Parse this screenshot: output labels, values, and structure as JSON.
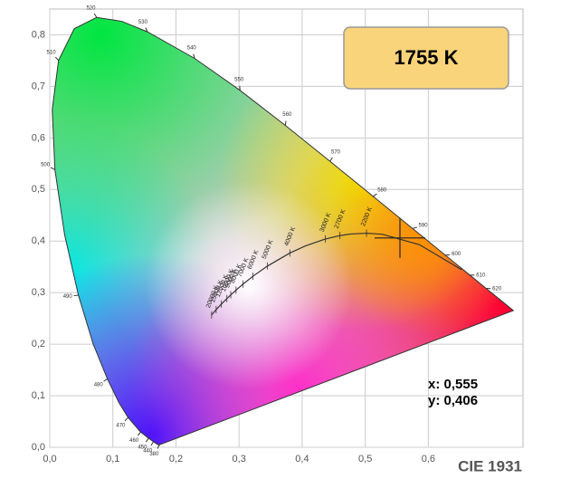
{
  "chart_data": {
    "type": "chromaticity",
    "badge": "1755 K",
    "footer": "CIE 1931",
    "point": {
      "x": 0.555,
      "y": 0.406,
      "x_label": "x: 0,555",
      "y_label": "y: 0,406"
    },
    "xlim": [
      0,
      0.75
    ],
    "ylim": [
      0,
      0.85
    ],
    "xticks": [
      {
        "value": 0,
        "label": "0,0"
      },
      {
        "value": 0.1,
        "label": "0,1"
      },
      {
        "value": 0.2,
        "label": "0,2"
      },
      {
        "value": 0.3,
        "label": "0,3"
      },
      {
        "value": 0.4,
        "label": "0,4"
      },
      {
        "value": 0.5,
        "label": "0,5"
      },
      {
        "value": 0.6,
        "label": "0,6"
      }
    ],
    "yticks": [
      {
        "value": 0,
        "label": "0,0"
      },
      {
        "value": 0.1,
        "label": "0,1"
      },
      {
        "value": 0.2,
        "label": "0,2"
      },
      {
        "value": 0.3,
        "label": "0,3"
      },
      {
        "value": 0.4,
        "label": "0,4"
      },
      {
        "value": 0.5,
        "label": "0,5"
      },
      {
        "value": 0.6,
        "label": "0,6"
      },
      {
        "value": 0.7,
        "label": "0,7"
      },
      {
        "value": 0.8,
        "label": "0,8"
      }
    ],
    "grid": true,
    "spectral_locus": {
      "x": [
        0.1741,
        0.1714,
        0.1644,
        0.1566,
        0.144,
        0.1241,
        0.1096,
        0.0913,
        0.0687,
        0.0454,
        0.0235,
        0.0082,
        0.0039,
        0.0139,
        0.0389,
        0.0743,
        0.1142,
        0.1547,
        0.2296,
        0.3016,
        0.3731,
        0.4441,
        0.5125,
        0.5752,
        0.627,
        0.6658,
        0.6915,
        0.719,
        0.7347
      ],
      "y": [
        0.005,
        0.0051,
        0.0109,
        0.0177,
        0.0297,
        0.0578,
        0.0868,
        0.1327,
        0.2007,
        0.295,
        0.4127,
        0.5384,
        0.6548,
        0.7502,
        0.812,
        0.8338,
        0.8262,
        0.8059,
        0.7543,
        0.6923,
        0.6245,
        0.5547,
        0.4866,
        0.4242,
        0.3725,
        0.334,
        0.3083,
        0.2809,
        0.2653
      ],
      "labels": [
        "380",
        null,
        "440",
        "450",
        "460",
        "470",
        null,
        "480",
        null,
        "490",
        null,
        "500",
        null,
        "510",
        null,
        "520",
        null,
        "530",
        "540",
        "550",
        "560",
        "570",
        "580",
        "590",
        "600",
        "610",
        "620",
        null,
        null
      ]
    },
    "planckian_locus": {
      "x": [
        0.6528,
        0.5857,
        0.5267,
        0.502,
        0.477,
        0.4599,
        0.4369,
        0.4053,
        0.3805,
        0.3451,
        0.3221,
        0.3064,
        0.2952,
        0.2869,
        0.2807,
        0.272,
        0.2637,
        0.2565
      ],
      "y": [
        0.3444,
        0.3931,
        0.4133,
        0.4152,
        0.4137,
        0.4106,
        0.4041,
        0.3907,
        0.3768,
        0.3516,
        0.3318,
        0.3166,
        0.3048,
        0.2956,
        0.2884,
        0.2779,
        0.2671,
        0.2567
      ],
      "labels": [
        null,
        null,
        null,
        "2200 K",
        null,
        "2700 K",
        "3000 K",
        null,
        "4000 K",
        "5000 K",
        "6000 K",
        "7000 K",
        "8000 K",
        "9000 K",
        "10000 K",
        "12000 K",
        "15000 K",
        "20000 K"
      ]
    }
  }
}
